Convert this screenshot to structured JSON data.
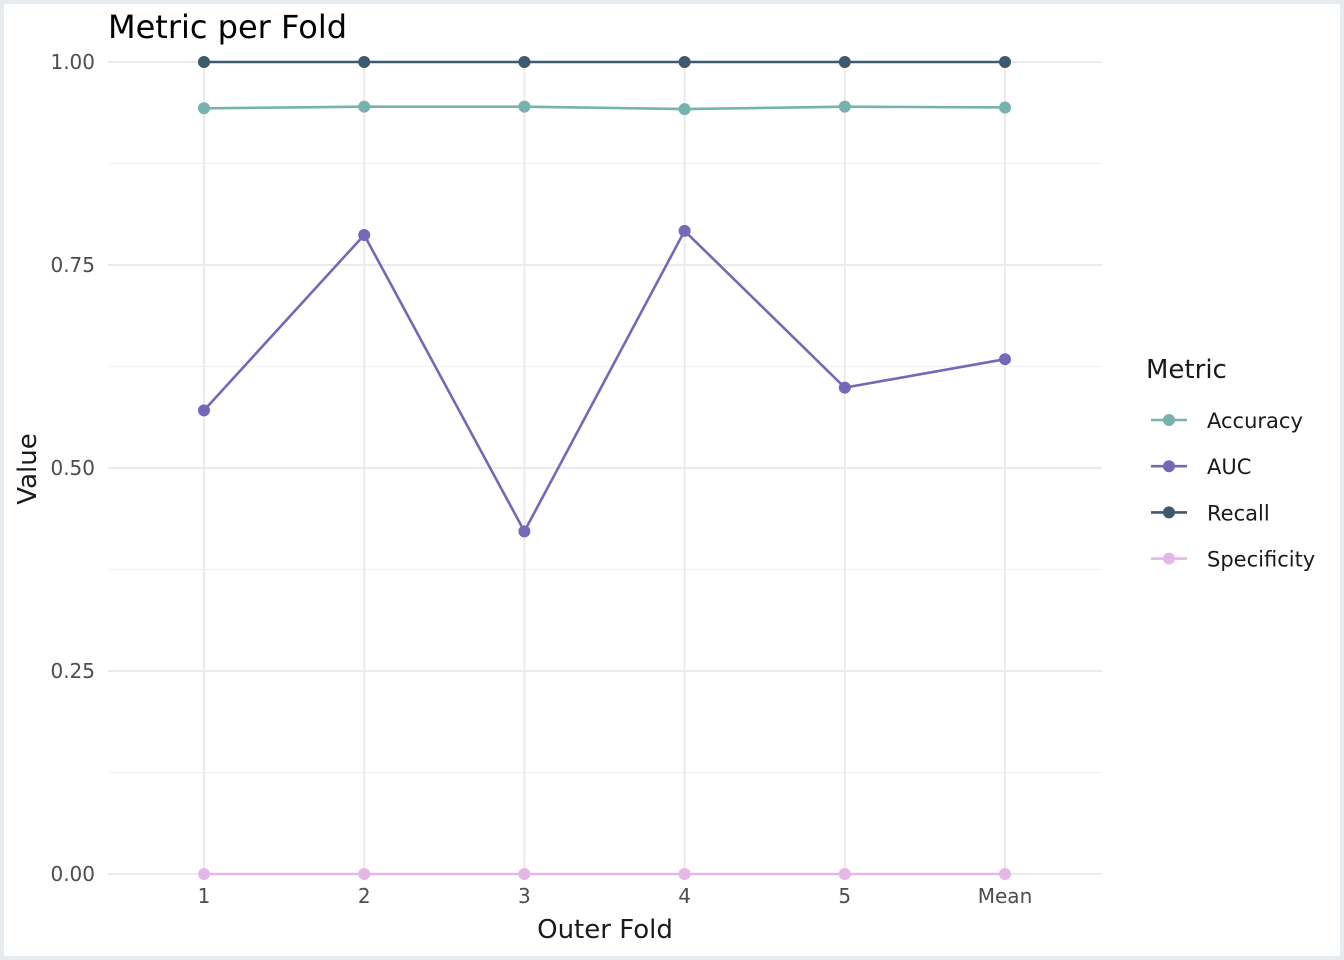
{
  "chart_data": {
    "type": "line",
    "title": "Metric per Fold",
    "xlabel": "Outer Fold",
    "ylabel": "Value",
    "categories": [
      "1",
      "2",
      "3",
      "4",
      "5",
      "Mean"
    ],
    "ylim": [
      0,
      1
    ],
    "yticks": [
      "0.00",
      "0.25",
      "0.50",
      "0.75",
      "1.00"
    ],
    "ytick_values": [
      0,
      0.25,
      0.5,
      0.75,
      1.0
    ],
    "grid": true,
    "legend": {
      "title": "Metric",
      "placement": "right"
    },
    "series": [
      {
        "name": "Accuracy",
        "color": "#76b2ae",
        "values": [
          0.943,
          0.945,
          0.945,
          0.942,
          0.945,
          0.944
        ]
      },
      {
        "name": "AUC",
        "color": "#7468b8",
        "values": [
          0.571,
          0.787,
          0.422,
          0.792,
          0.599,
          0.634
        ]
      },
      {
        "name": "Recall",
        "color": "#3b5a6c",
        "values": [
          1.0,
          1.0,
          1.0,
          1.0,
          1.0,
          1.0
        ]
      },
      {
        "name": "Specificity",
        "color": "#e3b8e6",
        "values": [
          0.0,
          0.0,
          0.0,
          0.0,
          0.0,
          0.0
        ]
      }
    ]
  }
}
